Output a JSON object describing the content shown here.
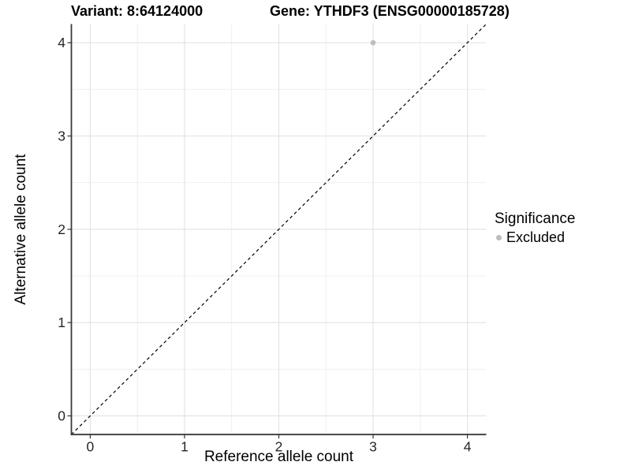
{
  "titles": {
    "variant": "Variant: 8:64124000",
    "gene": "Gene: YTHDF3 (ENSG00000185728)"
  },
  "axes": {
    "x_label": "Reference allele count",
    "y_label": "Alternative allele count",
    "x_tick_labels": [
      "0",
      "1",
      "2",
      "3",
      "4"
    ],
    "y_tick_labels": [
      "0",
      "1",
      "2",
      "3",
      "4"
    ]
  },
  "legend": {
    "title": "Significance",
    "items": [
      {
        "label": "Excluded",
        "marker": "circle",
        "color": "#bdbdbd"
      }
    ]
  },
  "chart_data": {
    "type": "scatter",
    "title": "Variant: 8:64124000 — Gene: YTHDF3 (ENSG00000185728)",
    "xlabel": "Reference allele count",
    "ylabel": "Alternative allele count",
    "xlim": [
      -0.2,
      4.2
    ],
    "ylim": [
      -0.2,
      4.2
    ],
    "x_ticks": [
      0,
      1,
      2,
      3,
      4
    ],
    "y_ticks": [
      0,
      1,
      2,
      3,
      4
    ],
    "x_minor_ticks": [
      0.5,
      1.5,
      2.5,
      3.5
    ],
    "y_minor_ticks": [
      0.5,
      1.5,
      2.5,
      3.5
    ],
    "grid": "major+minor",
    "legend_position": "right",
    "series": [
      {
        "name": "Excluded",
        "color": "#bdbdbd",
        "points": [
          [
            3,
            4
          ]
        ]
      }
    ],
    "reference_line": {
      "slope": 1,
      "intercept": 0,
      "style": "dashed",
      "color": "#000000"
    }
  },
  "colors": {
    "background": "#ffffff",
    "grid_major": "#e4e4e4",
    "grid_minor": "#efefef",
    "axis_line": "#3a3a3a",
    "tick_mark": "#333333",
    "tick_text": "#262626",
    "point": "#bdbdbd"
  }
}
